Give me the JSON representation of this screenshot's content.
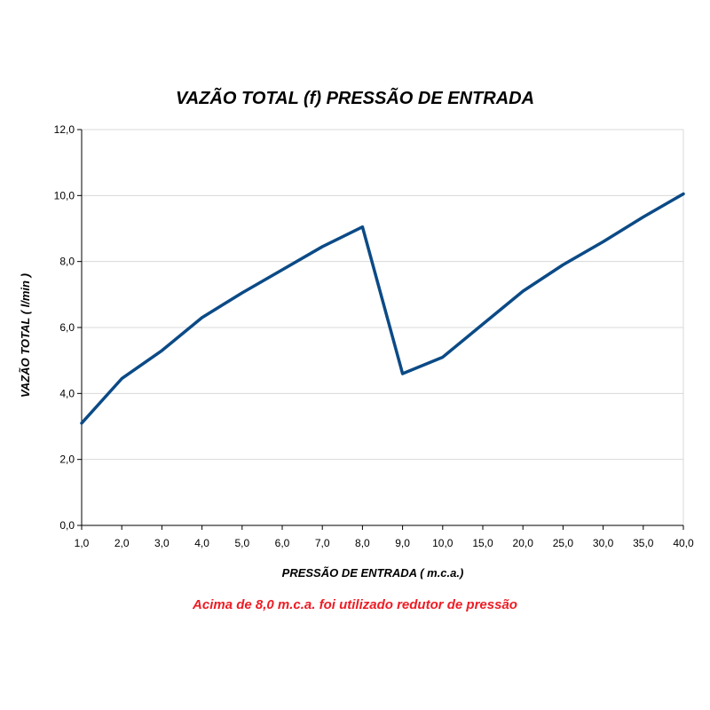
{
  "chart_data": {
    "type": "line",
    "title": "VAZÃO TOTAL (f) PRESSÃO DE ENTRADA",
    "xlabel": "PRESSÃO DE ENTRADA ( m.c.a.)",
    "ylabel": "VAZÃO TOTAL ( l/min )",
    "note": "Acima de 8,0 m.c.a. foi utilizado redutor de pressão",
    "categories": [
      "1,0",
      "2,0",
      "3,0",
      "4,0",
      "5,0",
      "6,0",
      "7,0",
      "8,0",
      "9,0",
      "10,0",
      "15,0",
      "20,0",
      "25,0",
      "30,0",
      "35,0",
      "40,0"
    ],
    "series": [
      {
        "values": [
          3.1,
          4.45,
          5.3,
          6.3,
          7.05,
          7.75,
          8.45,
          9.05,
          4.6,
          5.1,
          6.1,
          7.1,
          7.9,
          8.6,
          9.35,
          10.05
        ]
      }
    ],
    "ylim": [
      0,
      12
    ],
    "yticks": [
      "0,0",
      "2,0",
      "4,0",
      "6,0",
      "8,0",
      "10,0",
      "12,0"
    ],
    "grid": true,
    "colors": {
      "line": "#0b4a86",
      "grid": "#d8d8d8",
      "axis": "#000000",
      "note": "#ee1c24"
    }
  }
}
